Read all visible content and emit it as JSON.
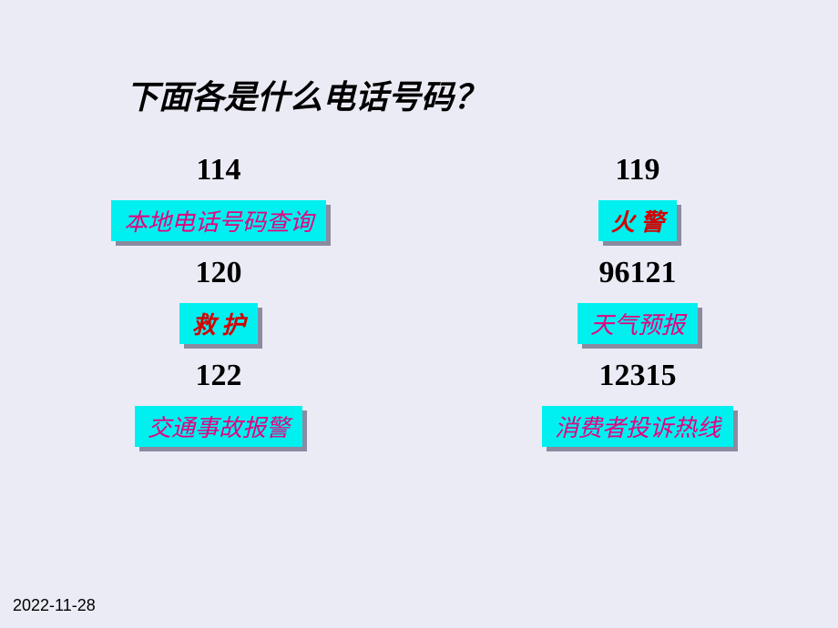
{
  "title": "下面各是什么电话号码？",
  "date": "2022-11-28",
  "left": [
    {
      "number": "114",
      "label": "本地电话号码查询",
      "label_color": "#e6007e"
    },
    {
      "number": "120",
      "label": "救 护",
      "label_color": "#d40000"
    },
    {
      "number": "122",
      "label": "交通事故报警",
      "label_color": "#e6007e"
    }
  ],
  "right": [
    {
      "number": "119",
      "label": "火 警",
      "label_color": "#d40000"
    },
    {
      "number": "96121",
      "label": "天气预报",
      "label_color": "#e6007e"
    },
    {
      "number": "12315",
      "label": "消费者投诉热线",
      "label_color": "#e6007e"
    }
  ],
  "style": {
    "background_color": "#ebebf5",
    "tag_bg_color": "#00f0f0",
    "tag_shadow_color": "#8a8aa0",
    "title_color": "#000000",
    "number_color": "#000000",
    "title_fontsize": 36,
    "number_fontsize": 34,
    "tag_fontsize": 26,
    "date_fontsize": 18
  }
}
